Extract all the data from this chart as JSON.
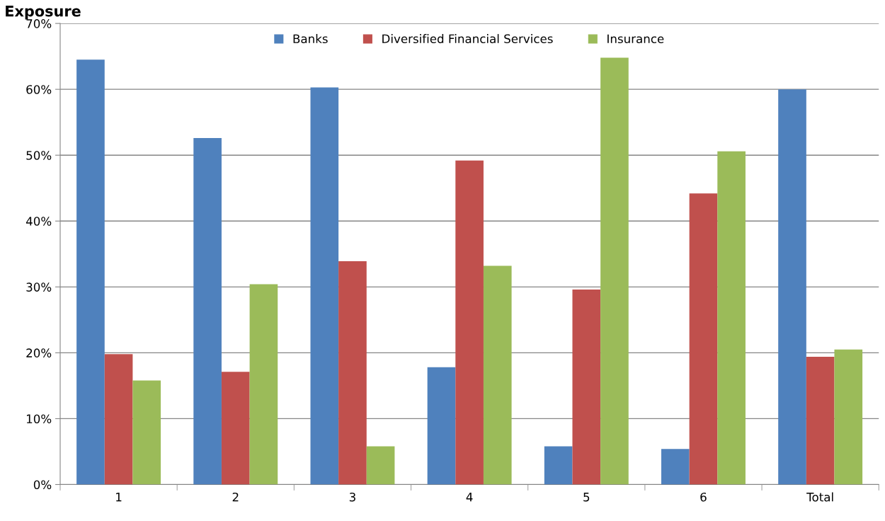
{
  "chart_data": {
    "type": "bar",
    "title": "Exposure",
    "categories": [
      "1",
      "2",
      "3",
      "4",
      "5",
      "6",
      "Total"
    ],
    "series": [
      {
        "name": "Banks",
        "color": "#4f81bd",
        "values": [
          64.5,
          52.6,
          60.3,
          17.8,
          5.8,
          5.4,
          60.0
        ]
      },
      {
        "name": "Diversified Financial Services",
        "color": "#c0504d",
        "values": [
          19.8,
          17.1,
          33.9,
          49.2,
          29.6,
          44.2,
          19.4
        ]
      },
      {
        "name": "Insurance",
        "color": "#9bbb59",
        "values": [
          15.8,
          30.4,
          5.8,
          33.2,
          64.8,
          50.6,
          20.5
        ]
      }
    ],
    "ylim": [
      0,
      70
    ],
    "yticks": [
      {
        "value": 0,
        "label": "0%"
      },
      {
        "value": 10,
        "label": "10%"
      },
      {
        "value": 20,
        "label": "20%"
      },
      {
        "value": 30,
        "label": "30%"
      },
      {
        "value": 40,
        "label": "40%"
      },
      {
        "value": 50,
        "label": "50%"
      },
      {
        "value": 60,
        "label": "60%"
      },
      {
        "value": 70,
        "label": "70%"
      }
    ],
    "grid": "y",
    "legend": "top"
  }
}
